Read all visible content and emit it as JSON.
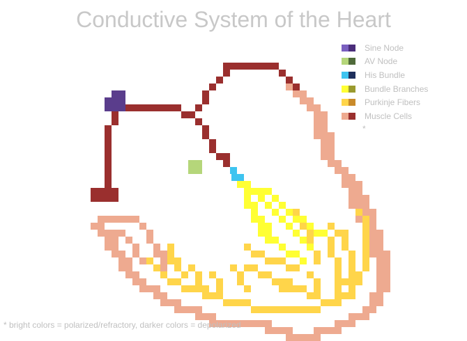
{
  "title": "Conductive System of the Heart",
  "legend": {
    "items": [
      {
        "label": "Sine Node",
        "bright": "#7a5fbf",
        "dark": "#4a2d7a"
      },
      {
        "label": "AV Node",
        "bright": "#b5d67a",
        "dark": "#4f6a3a"
      },
      {
        "label": "His Bundle",
        "bright": "#3ec4f0",
        "dark": "#1e2f5c"
      },
      {
        "label": "Bundle Branches",
        "bright": "#ffff33",
        "dark": "#9a9a2e"
      },
      {
        "label": "Purkinje Fibers",
        "bright": "#ffd54a",
        "dark": "#c98a2a"
      },
      {
        "label": "Muscle Cells",
        "bright": "#eeaa90",
        "dark": "#9a2f2e"
      }
    ],
    "note": "*"
  },
  "footnote": "* bright colors = polarized/refractory, darker colors = depolarized",
  "colors": {
    "muscle_dark": "#9a2f2e",
    "muscle_light": "#eeaa90",
    "sine_node": "#5a3d8c",
    "av_node": "#b5d67a",
    "his_bundle": "#3ec4f0",
    "bundle_branches": "#ffff33",
    "purkinje": "#ffd54a"
  }
}
